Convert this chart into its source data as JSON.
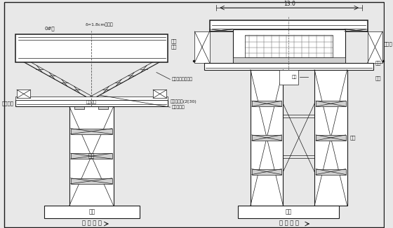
{
  "bg_color": "#e8e8e8",
  "line_color": "#1a1a1a",
  "fc_white": "#ffffff",
  "fc_light": "#d0d0d0",
  "title_left": "纵 断 面 图",
  "title_right": "横 断 面 图",
  "label_left_beam": "托架纵梁",
  "label_buried_steel": "预埋型钢",
  "label_dist_beam": "横向分配梁(2[30)",
  "label_military_col": "八三军用支墩立柱",
  "label_shear": "横向剪力撑",
  "label_pier_l": "墩身",
  "label_cap_l": "承台",
  "label_0block": "0#段",
  "label_plywood": "δ=1.8cm胶合板",
  "label_steel_fence": "钢架\n围栏",
  "label_scaffold": "脚手架",
  "label_mid_frame": "枢架",
  "label_longbeam_r": "纵梁",
  "label_column_r": "立柱",
  "label_pier_r": "墩身",
  "label_cap_r": "承台",
  "label_dim": "13.0"
}
